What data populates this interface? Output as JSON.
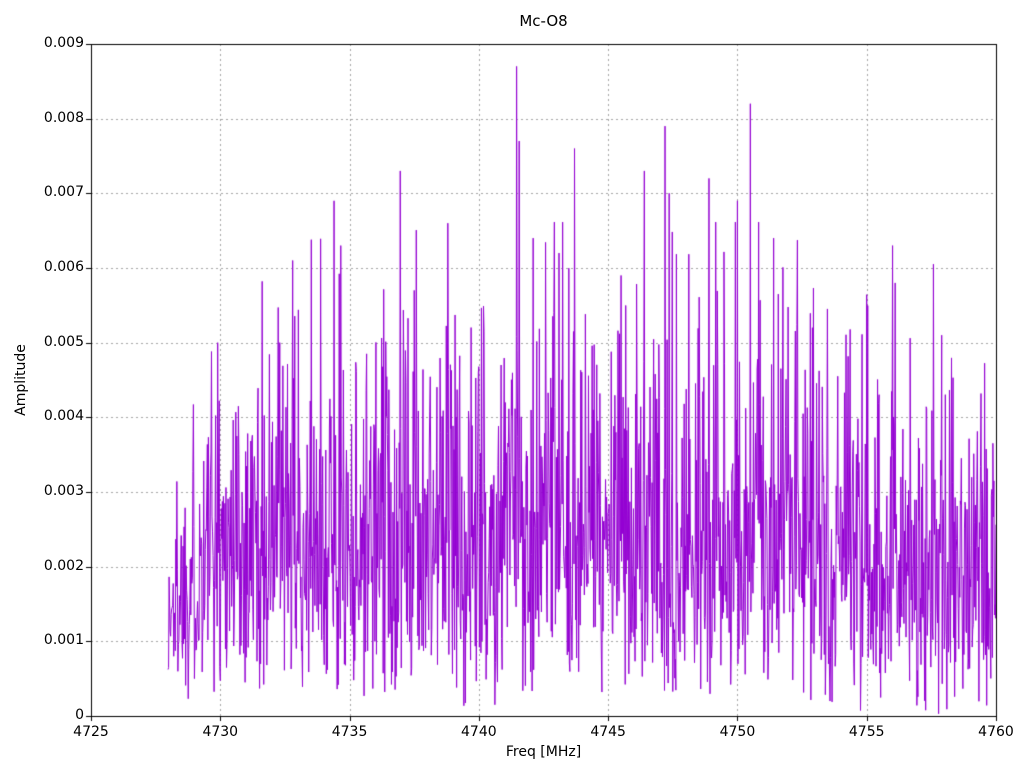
{
  "chart_data": {
    "type": "line",
    "title": "Mc-O8",
    "xlabel": "Freq [MHz]",
    "ylabel": "Amplitude",
    "xlim": [
      4725,
      4760
    ],
    "ylim": [
      0,
      0.009
    ],
    "xticks": [
      "4725",
      "4730",
      "4735",
      "4740",
      "4745",
      "4750",
      "4755",
      "4760"
    ],
    "yticks": [
      "0",
      "0.001",
      "0.002",
      "0.003",
      "0.004",
      "0.005",
      "0.006",
      "0.007",
      "0.008",
      "0.009"
    ],
    "grid": "dotted",
    "grid_color": "#a6a6a6",
    "axis_color": "#000000",
    "line_color": "#9400D3",
    "background": "#ffffff",
    "legend": "none",
    "series": [
      {
        "name": "amplitude-spectrum",
        "synthesis": {
          "x_start": 4727.98,
          "x_end": 4760.0,
          "x_step": 0.02,
          "distribution": "rayleigh",
          "sigma": 0.00195,
          "seed": 1337,
          "baseline_cap": 0.0063,
          "envelope": [
            [
              4727.98,
              0.5
            ],
            [
              4728.4,
              0.75
            ],
            [
              4729.5,
              0.95
            ],
            [
              4731,
              1.0
            ],
            [
              4741,
              1.05
            ],
            [
              4751,
              1.05
            ],
            [
              4756,
              1.0
            ],
            [
              4760,
              0.9
            ]
          ]
        },
        "peaks": [
          {
            "x": 4729.9,
            "y": 0.005
          },
          {
            "x": 4732.3,
            "y": 0.005
          },
          {
            "x": 4734.4,
            "y": 0.0069
          },
          {
            "x": 4734.65,
            "y": 0.0063
          },
          {
            "x": 4736.95,
            "y": 0.0073
          },
          {
            "x": 4737.5,
            "y": 0.0057
          },
          {
            "x": 4738.8,
            "y": 0.0066
          },
          {
            "x": 4741.45,
            "y": 0.0087
          },
          {
            "x": 4741.55,
            "y": 0.0077
          },
          {
            "x": 4742.1,
            "y": 0.0064
          },
          {
            "x": 4743.1,
            "y": 0.0062
          },
          {
            "x": 4743.7,
            "y": 0.0076
          },
          {
            "x": 4745.5,
            "y": 0.0059
          },
          {
            "x": 4746.4,
            "y": 0.0073
          },
          {
            "x": 4747.2,
            "y": 0.0079
          },
          {
            "x": 4747.35,
            "y": 0.007
          },
          {
            "x": 4748.9,
            "y": 0.0072
          },
          {
            "x": 4750.0,
            "y": 0.0069
          },
          {
            "x": 4750.5,
            "y": 0.0082
          },
          {
            "x": 4751.4,
            "y": 0.0064
          },
          {
            "x": 4752.9,
            "y": 0.0052
          },
          {
            "x": 4756.0,
            "y": 0.0063
          },
          {
            "x": 4756.1,
            "y": 0.0058
          },
          {
            "x": 4757.9,
            "y": 0.0051
          }
        ]
      }
    ]
  }
}
